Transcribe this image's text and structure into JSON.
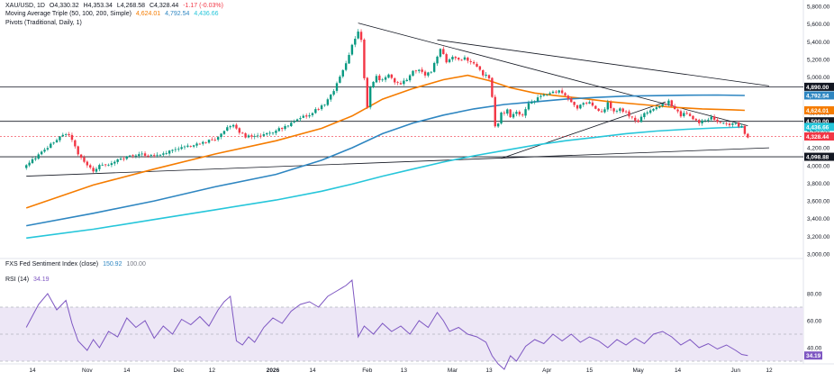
{
  "legend": {
    "symbol": "XAU/USD, 1D",
    "o": "O4,330.32",
    "h": "H4,353.34",
    "l": "L4,268.58",
    "c": "C4,328.44",
    "chg": "-1.17 (-0.03%)",
    "ma_name": "Moving Average Triple (50, 100, 200, Simple)",
    "ma50": "4,624.01",
    "ma100": "4,792.54",
    "ma200": "4,436.66",
    "pivots": "Pivots (Traditional, Daily, 1)",
    "fxs_name": "FXS Fed Sentiment Index (close)",
    "fxs_v1": "150.92",
    "fxs_v2": "100.00",
    "rsi_name": "RSI (14)",
    "rsi_v": "34.19"
  },
  "colors": {
    "up": "#089981",
    "down": "#f23645",
    "ma50": "#f57c00",
    "ma100": "#2e86c1",
    "ma200": "#26c6da",
    "rsi": "#7e57c2",
    "rsi_band": "#ede7f6",
    "trend": "#131722",
    "axis_text": "#131722"
  },
  "chart_data": [
    {
      "type": "candlestick",
      "title": "XAU/USD, 1D",
      "ylim": [
        3000,
        5800
      ],
      "y_ticks": [
        "5,800.00",
        "5,600.00",
        "5,400.00",
        "5,200.00",
        "5,000.00",
        "4,800.00",
        "4,600.00",
        "4,400.00",
        "4,200.00",
        "4,000.00",
        "3,800.00",
        "3,600.00",
        "3,400.00",
        "3,200.00",
        "3,000.00"
      ],
      "x_ticks": [
        {
          "label": "14",
          "day": 0
        },
        {
          "label": "Nov",
          "day": 18
        },
        {
          "label": "14",
          "day": 31
        },
        {
          "label": "Dec",
          "day": 48
        },
        {
          "label": "12",
          "day": 59
        },
        {
          "label": "2026",
          "day": 79
        },
        {
          "label": "14",
          "day": 92
        },
        {
          "label": "Feb",
          "day": 110
        },
        {
          "label": "13",
          "day": 122
        },
        {
          "label": "Mar",
          "day": 138
        },
        {
          "label": "13",
          "day": 150
        },
        {
          "label": "Apr",
          "day": 169
        },
        {
          "label": "15",
          "day": 183
        },
        {
          "label": "May",
          "day": 199
        },
        {
          "label": "14",
          "day": 212
        },
        {
          "label": "Jun",
          "day": 231
        },
        {
          "label": "12",
          "day": 242
        }
      ],
      "price_path": [
        [
          -2,
          4000
        ],
        [
          2,
          4120
        ],
        [
          5,
          4200
        ],
        [
          8,
          4300
        ],
        [
          11,
          4360
        ],
        [
          13,
          4300
        ],
        [
          15,
          4120
        ],
        [
          18,
          4000
        ],
        [
          20,
          3940
        ],
        [
          22,
          4000
        ],
        [
          25,
          4020
        ],
        [
          28,
          4060
        ],
        [
          32,
          4100
        ],
        [
          36,
          4130
        ],
        [
          40,
          4110
        ],
        [
          44,
          4150
        ],
        [
          48,
          4200
        ],
        [
          52,
          4220
        ],
        [
          56,
          4260
        ],
        [
          60,
          4300
        ],
        [
          62,
          4350
        ],
        [
          64,
          4440
        ],
        [
          66,
          4470
        ],
        [
          68,
          4380
        ],
        [
          70,
          4330
        ],
        [
          72,
          4320
        ],
        [
          76,
          4340
        ],
        [
          80,
          4400
        ],
        [
          84,
          4450
        ],
        [
          88,
          4530
        ],
        [
          92,
          4600
        ],
        [
          96,
          4700
        ],
        [
          99,
          4850
        ],
        [
          101,
          5000
        ],
        [
          103,
          5150
        ],
        [
          105,
          5350
        ],
        [
          107,
          5520
        ],
        [
          108,
          5420
        ],
        [
          109,
          5000
        ],
        [
          110,
          4660
        ],
        [
          111,
          4870
        ],
        [
          113,
          5000
        ],
        [
          115,
          4960
        ],
        [
          117,
          5040
        ],
        [
          119,
          4930
        ],
        [
          121,
          4920
        ],
        [
          123,
          4980
        ],
        [
          125,
          5060
        ],
        [
          127,
          5080
        ],
        [
          129,
          5030
        ],
        [
          131,
          5060
        ],
        [
          133,
          5230
        ],
        [
          134,
          5310
        ],
        [
          136,
          5180
        ],
        [
          138,
          5230
        ],
        [
          140,
          5190
        ],
        [
          142,
          5220
        ],
        [
          144,
          5170
        ],
        [
          146,
          5120
        ],
        [
          148,
          5030
        ],
        [
          150,
          5000
        ],
        [
          151,
          4770
        ],
        [
          152,
          4450
        ],
        [
          153,
          4470
        ],
        [
          154,
          4590
        ],
        [
          156,
          4620
        ],
        [
          157,
          4550
        ],
        [
          159,
          4600
        ],
        [
          161,
          4560
        ],
        [
          163,
          4690
        ],
        [
          165,
          4740
        ],
        [
          167,
          4780
        ],
        [
          169,
          4810
        ],
        [
          171,
          4830
        ],
        [
          173,
          4850
        ],
        [
          175,
          4790
        ],
        [
          177,
          4730
        ],
        [
          179,
          4650
        ],
        [
          181,
          4700
        ],
        [
          183,
          4710
        ],
        [
          185,
          4640
        ],
        [
          187,
          4590
        ],
        [
          189,
          4700
        ],
        [
          191,
          4600
        ],
        [
          193,
          4640
        ],
        [
          195,
          4600
        ],
        [
          197,
          4530
        ],
        [
          199,
          4500
        ],
        [
          201,
          4580
        ],
        [
          203,
          4620
        ],
        [
          205,
          4660
        ],
        [
          207,
          4690
        ],
        [
          209,
          4720
        ],
        [
          211,
          4640
        ],
        [
          213,
          4560
        ],
        [
          215,
          4600
        ],
        [
          217,
          4520
        ],
        [
          219,
          4490
        ],
        [
          221,
          4510
        ],
        [
          223,
          4540
        ],
        [
          225,
          4500
        ],
        [
          227,
          4470
        ],
        [
          229,
          4460
        ],
        [
          231,
          4470
        ],
        [
          233,
          4430
        ],
        [
          234,
          4350
        ],
        [
          235,
          4328
        ]
      ],
      "series": [
        {
          "name": "50",
          "points": [
            [
              -2,
              3520
            ],
            [
              20,
              3780
            ],
            [
              40,
              3960
            ],
            [
              60,
              4130
            ],
            [
              80,
              4280
            ],
            [
              95,
              4420
            ],
            [
              105,
              4560
            ],
            [
              115,
              4750
            ],
            [
              125,
              4870
            ],
            [
              135,
              4970
            ],
            [
              143,
              5020
            ],
            [
              150,
              4960
            ],
            [
              157,
              4880
            ],
            [
              165,
              4820
            ],
            [
              172,
              4790
            ],
            [
              180,
              4760
            ],
            [
              190,
              4720
            ],
            [
              200,
              4690
            ],
            [
              210,
              4660
            ],
            [
              220,
              4640
            ],
            [
              230,
              4630
            ],
            [
              234,
              4624
            ]
          ]
        },
        {
          "name": "100",
          "points": [
            [
              -2,
              3320
            ],
            [
              20,
              3460
            ],
            [
              40,
              3600
            ],
            [
              60,
              3760
            ],
            [
              80,
              3900
            ],
            [
              95,
              4060
            ],
            [
              105,
              4200
            ],
            [
              115,
              4360
            ],
            [
              125,
              4480
            ],
            [
              135,
              4570
            ],
            [
              145,
              4640
            ],
            [
              155,
              4690
            ],
            [
              165,
              4720
            ],
            [
              175,
              4750
            ],
            [
              185,
              4770
            ],
            [
              195,
              4785
            ],
            [
              205,
              4790
            ],
            [
              215,
              4795
            ],
            [
              225,
              4797
            ],
            [
              234,
              4792
            ]
          ]
        },
        {
          "name": "200",
          "points": [
            [
              -2,
              3180
            ],
            [
              20,
              3280
            ],
            [
              40,
              3390
            ],
            [
              60,
              3500
            ],
            [
              80,
              3610
            ],
            [
              95,
              3710
            ],
            [
              105,
              3790
            ],
            [
              115,
              3880
            ],
            [
              125,
              3960
            ],
            [
              135,
              4040
            ],
            [
              145,
              4110
            ],
            [
              155,
              4170
            ],
            [
              165,
              4230
            ],
            [
              175,
              4280
            ],
            [
              185,
              4320
            ],
            [
              195,
              4360
            ],
            [
              205,
              4390
            ],
            [
              215,
              4410
            ],
            [
              225,
              4425
            ],
            [
              234,
              4436
            ]
          ]
        }
      ],
      "trendlines": [
        {
          "from": [
            -2,
            3880
          ],
          "to": [
            242,
            4200
          ]
        },
        {
          "from": [
            107,
            5610
          ],
          "to": [
            235,
            4450
          ]
        },
        {
          "from": [
            133,
            5420
          ],
          "to": [
            242,
            4900
          ]
        },
        {
          "from": [
            154,
            4080
          ],
          "to": [
            208,
            4720
          ]
        }
      ],
      "pivot_levels": [
        {
          "label": "4,890.00",
          "value": 4890,
          "color": "#131722"
        },
        {
          "label": "4,792.54",
          "value": 4792.54,
          "color": "#2e86c1"
        },
        {
          "label": "4,624.01",
          "value": 4624.01,
          "color": "#f57c00"
        },
        {
          "label": "4,500.00",
          "value": 4500,
          "color": "#131722"
        },
        {
          "label": "4,436.66",
          "value": 4436.66,
          "color": "#26c6da"
        },
        {
          "label": "4,328.44",
          "value": 4328.44,
          "color": "#f23645"
        },
        {
          "label": "4,098.88",
          "value": 4098.88,
          "color": "#131722"
        }
      ]
    },
    {
      "type": "line",
      "title": "RSI (14)",
      "ylim": [
        20,
        90
      ],
      "y_ticks": [
        "80.00",
        "60.00",
        "40.00"
      ],
      "band": [
        30,
        70
      ],
      "last_label": "34.19",
      "series": [
        {
          "name": "RSI (14)",
          "points": [
            [
              -2,
              55
            ],
            [
              2,
              72
            ],
            [
              5,
              80
            ],
            [
              8,
              68
            ],
            [
              11,
              75
            ],
            [
              13,
              58
            ],
            [
              15,
              45
            ],
            [
              18,
              38
            ],
            [
              20,
              46
            ],
            [
              22,
              40
            ],
            [
              25,
              52
            ],
            [
              28,
              48
            ],
            [
              31,
              62
            ],
            [
              34,
              55
            ],
            [
              37,
              60
            ],
            [
              40,
              47
            ],
            [
              43,
              56
            ],
            [
              46,
              50
            ],
            [
              49,
              61
            ],
            [
              52,
              57
            ],
            [
              55,
              63
            ],
            [
              58,
              56
            ],
            [
              61,
              68
            ],
            [
              63,
              74
            ],
            [
              65,
              78
            ],
            [
              67,
              45
            ],
            [
              69,
              42
            ],
            [
              71,
              48
            ],
            [
              73,
              44
            ],
            [
              76,
              55
            ],
            [
              79,
              62
            ],
            [
              82,
              58
            ],
            [
              85,
              67
            ],
            [
              88,
              72
            ],
            [
              91,
              74
            ],
            [
              94,
              70
            ],
            [
              97,
              78
            ],
            [
              100,
              82
            ],
            [
              103,
              86
            ],
            [
              105,
              90
            ],
            [
              106,
              70
            ],
            [
              107,
              48
            ],
            [
              109,
              56
            ],
            [
              112,
              50
            ],
            [
              115,
              58
            ],
            [
              118,
              52
            ],
            [
              121,
              56
            ],
            [
              124,
              50
            ],
            [
              127,
              60
            ],
            [
              130,
              55
            ],
            [
              133,
              66
            ],
            [
              135,
              60
            ],
            [
              137,
              52
            ],
            [
              140,
              55
            ],
            [
              143,
              50
            ],
            [
              146,
              48
            ],
            [
              149,
              44
            ],
            [
              151,
              34
            ],
            [
              153,
              28
            ],
            [
              155,
              24
            ],
            [
              157,
              34
            ],
            [
              159,
              30
            ],
            [
              162,
              41
            ],
            [
              165,
              46
            ],
            [
              168,
              43
            ],
            [
              171,
              50
            ],
            [
              174,
              45
            ],
            [
              177,
              50
            ],
            [
              180,
              44
            ],
            [
              183,
              48
            ],
            [
              186,
              45
            ],
            [
              189,
              40
            ],
            [
              192,
              46
            ],
            [
              195,
              42
            ],
            [
              198,
              47
            ],
            [
              201,
              43
            ],
            [
              204,
              50
            ],
            [
              207,
              52
            ],
            [
              210,
              48
            ],
            [
              213,
              42
            ],
            [
              216,
              46
            ],
            [
              219,
              40
            ],
            [
              222,
              43
            ],
            [
              225,
              39
            ],
            [
              228,
              42
            ],
            [
              231,
              38
            ],
            [
              233,
              35
            ],
            [
              235,
              34.19
            ]
          ]
        }
      ]
    }
  ]
}
